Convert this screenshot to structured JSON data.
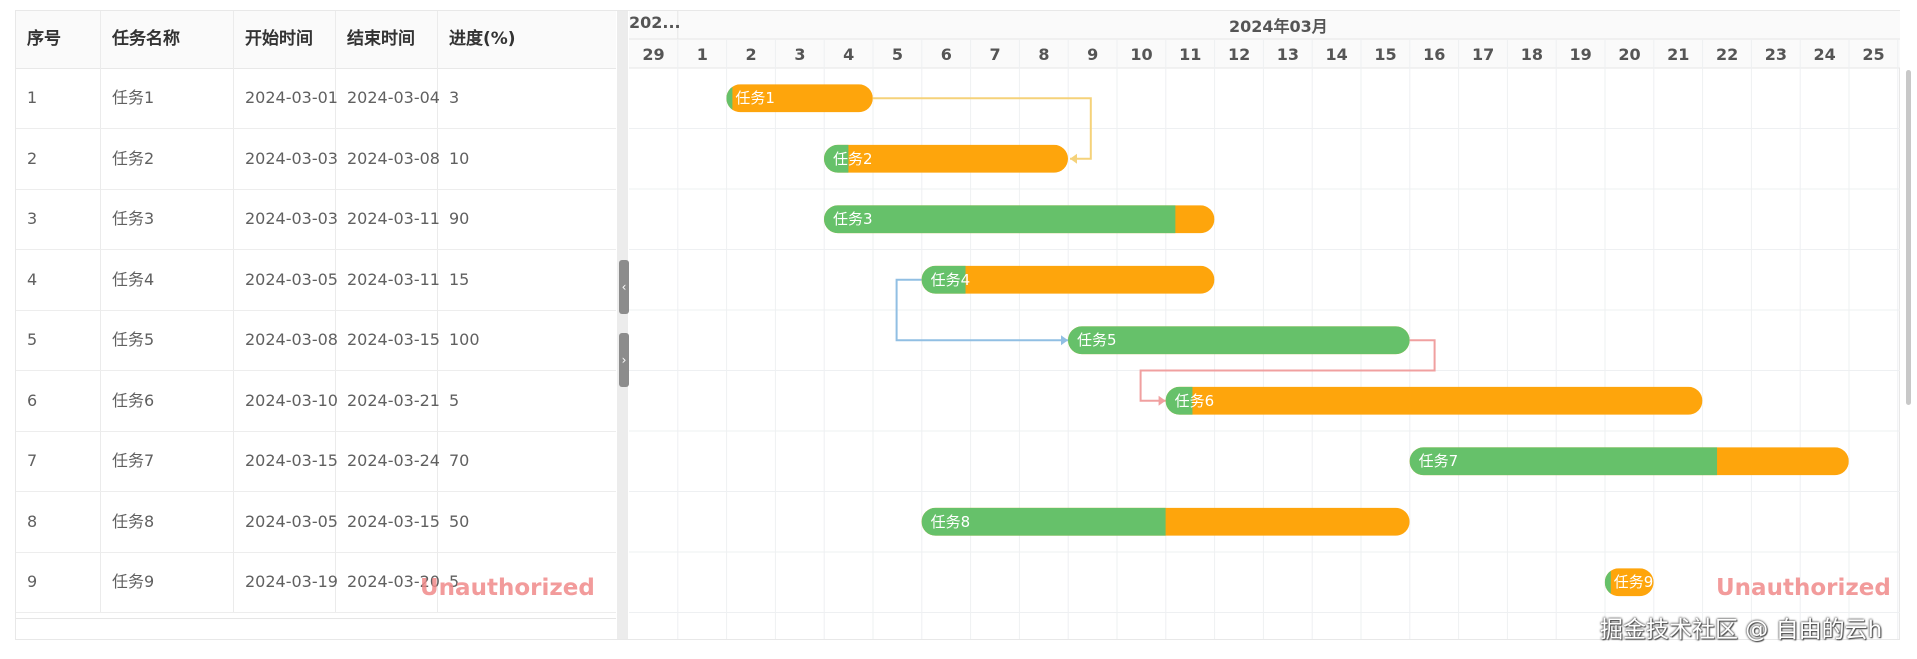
{
  "grid": {
    "columns": [
      "序号",
      "任务名称",
      "开始时间",
      "结束时间",
      "进度(%)"
    ],
    "rows": [
      {
        "id": "1",
        "name": "任务1",
        "start": "2024-03-01",
        "end": "2024-03-04",
        "progress": "3"
      },
      {
        "id": "2",
        "name": "任务2",
        "start": "2024-03-03",
        "end": "2024-03-08",
        "progress": "10"
      },
      {
        "id": "3",
        "name": "任务3",
        "start": "2024-03-03",
        "end": "2024-03-11",
        "progress": "90"
      },
      {
        "id": "4",
        "name": "任务4",
        "start": "2024-03-05",
        "end": "2024-03-11",
        "progress": "15"
      },
      {
        "id": "5",
        "name": "任务5",
        "start": "2024-03-08",
        "end": "2024-03-15",
        "progress": "100"
      },
      {
        "id": "6",
        "name": "任务6",
        "start": "2024-03-10",
        "end": "2024-03-21",
        "progress": "5"
      },
      {
        "id": "7",
        "name": "任务7",
        "start": "2024-03-15",
        "end": "2024-03-24",
        "progress": "70"
      },
      {
        "id": "8",
        "name": "任务8",
        "start": "2024-03-05",
        "end": "2024-03-15",
        "progress": "50"
      },
      {
        "id": "9",
        "name": "任务9",
        "start": "2024-03-19",
        "end": "2024-03-20",
        "progress": "5"
      }
    ]
  },
  "gantt": {
    "prev_month_label": "202...",
    "month_label": "2024年03月",
    "days": [
      "29",
      "1",
      "2",
      "3",
      "4",
      "5",
      "6",
      "7",
      "8",
      "9",
      "10",
      "11",
      "12",
      "13",
      "14",
      "15",
      "16",
      "17",
      "18",
      "19",
      "20",
      "21",
      "22",
      "23",
      "24",
      "25"
    ],
    "bars": [
      {
        "label": "任务1",
        "startDay": 1,
        "endDay": 4,
        "progress": 3
      },
      {
        "label": "任务2",
        "startDay": 3,
        "endDay": 8,
        "progress": 10
      },
      {
        "label": "任务3",
        "startDay": 3,
        "endDay": 11,
        "progress": 90
      },
      {
        "label": "任务4",
        "startDay": 5,
        "endDay": 11,
        "progress": 15
      },
      {
        "label": "任务5",
        "startDay": 8,
        "endDay": 15,
        "progress": 100
      },
      {
        "label": "任务6",
        "startDay": 10,
        "endDay": 21,
        "progress": 5
      },
      {
        "label": "任务7",
        "startDay": 15,
        "endDay": 24,
        "progress": 70
      },
      {
        "label": "任务8",
        "startDay": 5,
        "endDay": 15,
        "progress": 50
      },
      {
        "label": "任务9",
        "startDay": 19,
        "endDay": 20,
        "progress": 5
      }
    ],
    "links": [
      {
        "from": 1,
        "to": 2,
        "color": "#f5d27a"
      },
      {
        "from": 4,
        "to": 5,
        "color": "#91bfe3"
      },
      {
        "from": 5,
        "to": 6,
        "color": "#f0a0a0"
      }
    ],
    "colors": {
      "done": "#66c16a",
      "todo": "#fea50c",
      "grid": "#eef0f2"
    }
  },
  "splitter": {
    "collapse_glyph": "‹",
    "expand_glyph": "›"
  },
  "watermark": {
    "text": "Unauthorized"
  },
  "credit": "掘金技术社区 @ 自由的云h"
}
